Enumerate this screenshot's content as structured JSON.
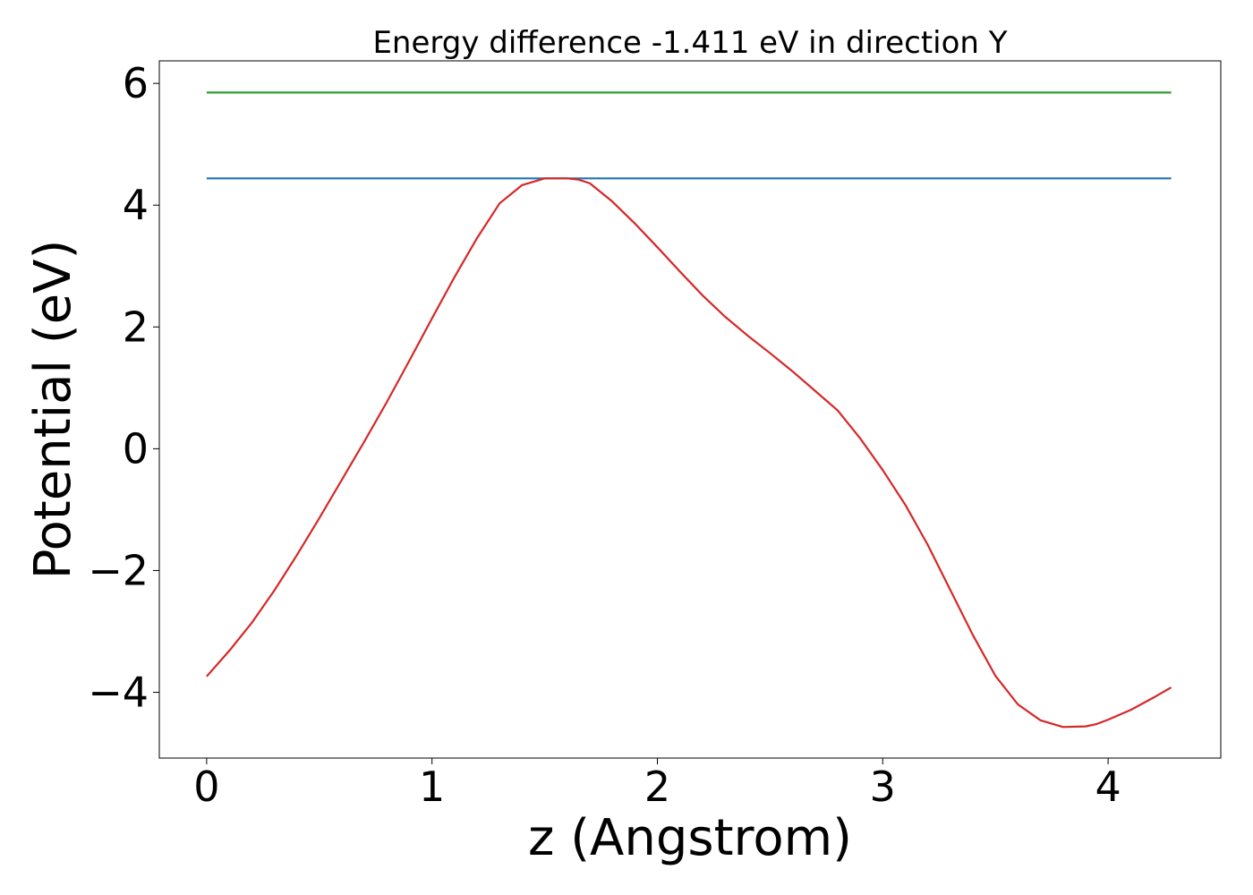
{
  "chart_data": {
    "type": "line",
    "title": "Energy difference -1.411 eV in direction Y",
    "xlabel": "z (Angstrom)",
    "ylabel": "Potential (eV)",
    "xlim": [
      -0.21,
      4.5
    ],
    "ylim": [
      -5.08,
      6.37
    ],
    "grid": false,
    "xticks": [
      0,
      1,
      2,
      3,
      4
    ],
    "xtick_labels": [
      "0",
      "1",
      "2",
      "3",
      "4"
    ],
    "yticks": [
      -4,
      -2,
      0,
      2,
      4,
      6
    ],
    "ytick_labels": [
      "−4",
      "−2",
      "0",
      "2",
      "4",
      "6"
    ],
    "series": [
      {
        "color": "#2ca02c",
        "x": [
          0,
          4.28
        ],
        "y": [
          5.85,
          5.85
        ]
      },
      {
        "color": "#1f77b4",
        "x": [
          0,
          4.28
        ],
        "y": [
          4.44,
          4.44
        ]
      },
      {
        "color": "#d62728",
        "x": [
          0,
          0.1,
          0.2,
          0.3,
          0.4,
          0.5,
          0.6,
          0.7,
          0.8,
          0.9,
          1.0,
          1.1,
          1.2,
          1.3,
          1.4,
          1.5,
          1.6,
          1.65,
          1.7,
          1.8,
          1.9,
          2.0,
          2.1,
          2.2,
          2.3,
          2.4,
          2.5,
          2.6,
          2.7,
          2.8,
          2.9,
          3.0,
          3.1,
          3.2,
          3.3,
          3.4,
          3.5,
          3.6,
          3.7,
          3.8,
          3.9,
          3.95,
          4.0,
          4.1,
          4.2,
          4.28
        ],
        "y": [
          -3.74,
          -3.32,
          -2.86,
          -2.33,
          -1.75,
          -1.14,
          -0.51,
          0.12,
          0.77,
          1.45,
          2.14,
          2.82,
          3.46,
          4.03,
          4.33,
          4.44,
          4.44,
          4.42,
          4.36,
          4.06,
          3.7,
          3.31,
          2.91,
          2.52,
          2.17,
          1.86,
          1.57,
          1.27,
          0.95,
          0.63,
          0.17,
          -0.35,
          -0.92,
          -1.58,
          -2.32,
          -3.06,
          -3.73,
          -4.2,
          -4.46,
          -4.57,
          -4.56,
          -4.52,
          -4.45,
          -4.29,
          -4.09,
          -3.92
        ]
      }
    ]
  }
}
